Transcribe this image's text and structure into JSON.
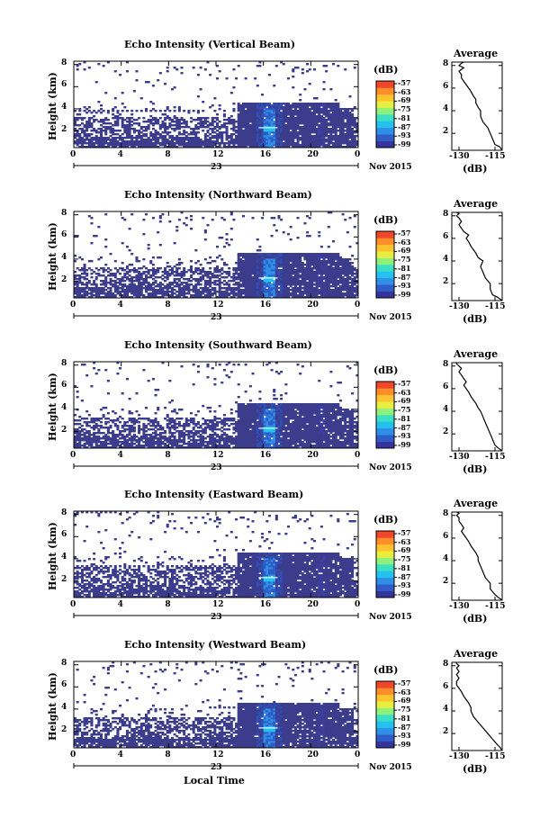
{
  "chart_data": [
    {
      "type": "heatmap",
      "title": "Echo Intensity (Vertical Beam)",
      "ylabel": "Height (km)",
      "xlabel": "",
      "x_ticks": [
        "0",
        "4",
        "8",
        "12",
        "16",
        "20",
        "0"
      ],
      "date_label": "23",
      "month_label": "Nov 2015",
      "y_ticks": [
        "2",
        "4",
        "6",
        "8"
      ],
      "ylim": [
        0.5,
        8.3
      ],
      "xlim": [
        0,
        24
      ],
      "colorbar_unit": "(dB)",
      "colorbar_ticks": [
        "-57",
        "-63",
        "-69",
        "-75",
        "-81",
        "-87",
        "-93",
        "-99"
      ],
      "mean_plot": {
        "title": "Average",
        "xlabel": "(dB)",
        "x_ticks": [
          "-130",
          "-115"
        ],
        "xlim": [
          -133,
          -112
        ],
        "y_ticks": [
          "2",
          "4",
          "6",
          "8"
        ],
        "x": [
          -112,
          -113,
          -115,
          -116,
          -117,
          -118,
          -120,
          -121,
          -121,
          -122,
          -123,
          -123,
          -124,
          -125,
          -126,
          -127,
          -128,
          -129,
          -129,
          -130,
          -128,
          -130,
          -129,
          -128
        ],
        "y": [
          0.5,
          0.8,
          1.0,
          1.5,
          2.0,
          2.5,
          3.0,
          3.5,
          4.0,
          4.3,
          4.7,
          5.0,
          5.3,
          5.7,
          6.0,
          6.3,
          6.6,
          6.9,
          7.2,
          7.5,
          7.8,
          8.0,
          8.2,
          8.3
        ]
      }
    },
    {
      "type": "heatmap",
      "title": "Echo Intensity (Northward Beam)",
      "ylabel": "Height (km)",
      "xlabel": "",
      "x_ticks": [
        "0",
        "4",
        "8",
        "12",
        "16",
        "20",
        "0"
      ],
      "date_label": "23",
      "month_label": "Nov 2015",
      "y_ticks": [
        "2",
        "4",
        "6",
        "8"
      ],
      "ylim": [
        0.5,
        8.3
      ],
      "xlim": [
        0,
        24
      ],
      "colorbar_unit": "(dB)",
      "colorbar_ticks": [
        "-57",
        "-63",
        "-69",
        "-75",
        "-81",
        "-87",
        "-93",
        "-99"
      ],
      "mean_plot": {
        "title": "Average",
        "xlabel": "(dB)",
        "x_ticks": [
          "-130",
          "-115"
        ],
        "xlim": [
          -133,
          -112
        ],
        "y_ticks": [
          "2",
          "4",
          "6",
          "8"
        ],
        "x": [
          -112,
          -114,
          -116,
          -117,
          -117,
          -119,
          -120,
          -121,
          -120,
          -122,
          -123,
          -124,
          -125,
          -126,
          -127,
          -126,
          -128,
          -129,
          -130,
          -129,
          -130,
          -131,
          -130,
          -131
        ],
        "y": [
          0.5,
          0.8,
          1.0,
          1.5,
          2.0,
          2.5,
          3.0,
          3.5,
          4.0,
          4.3,
          4.7,
          5.0,
          5.3,
          5.7,
          6.0,
          6.3,
          6.6,
          6.9,
          7.2,
          7.5,
          7.8,
          8.0,
          8.2,
          8.3
        ]
      }
    },
    {
      "type": "heatmap",
      "title": "Echo Intensity (Southward Beam)",
      "ylabel": "Height (km)",
      "xlabel": "",
      "x_ticks": [
        "0",
        "4",
        "8",
        "12",
        "16",
        "20",
        "0"
      ],
      "date_label": "23",
      "month_label": "Nov 2015",
      "y_ticks": [
        "2",
        "4",
        "6",
        "8"
      ],
      "ylim": [
        0.5,
        8.3
      ],
      "xlim": [
        0,
        24
      ],
      "colorbar_unit": "(dB)",
      "colorbar_ticks": [
        "-57",
        "-63",
        "-69",
        "-75",
        "-81",
        "-87",
        "-93",
        "-99"
      ],
      "mean_plot": {
        "title": "Average",
        "xlabel": "(dB)",
        "x_ticks": [
          "-130",
          "-115"
        ],
        "xlim": [
          -133,
          -112
        ],
        "y_ticks": [
          "2",
          "4",
          "6",
          "8"
        ],
        "x": [
          -112,
          -114,
          -115,
          -116,
          -117,
          -118,
          -119,
          -120,
          -121,
          -122,
          -123,
          -124,
          -125,
          -126,
          -127,
          -128,
          -127,
          -128,
          -129,
          -130,
          -129,
          -130,
          -131,
          -131
        ],
        "y": [
          0.5,
          0.8,
          1.0,
          1.5,
          2.0,
          2.5,
          3.0,
          3.5,
          4.0,
          4.3,
          4.7,
          5.0,
          5.3,
          5.7,
          6.0,
          6.3,
          6.6,
          6.9,
          7.2,
          7.5,
          7.8,
          8.0,
          8.2,
          8.3
        ]
      }
    },
    {
      "type": "heatmap",
      "title": "Echo Intensity (Eastward Beam)",
      "ylabel": "Height (km)",
      "xlabel": "",
      "x_ticks": [
        "0",
        "4",
        "8",
        "12",
        "16",
        "20",
        "0"
      ],
      "date_label": "23",
      "month_label": "Nov 2015",
      "y_ticks": [
        "2",
        "4",
        "6",
        "8"
      ],
      "ylim": [
        0.5,
        8.3
      ],
      "xlim": [
        0,
        24
      ],
      "colorbar_unit": "(dB)",
      "colorbar_ticks": [
        "-57",
        "-63",
        "-69",
        "-75",
        "-81",
        "-87",
        "-93",
        "-99"
      ],
      "mean_plot": {
        "title": "Average",
        "xlabel": "(dB)",
        "x_ticks": [
          "-130",
          "-115"
        ],
        "xlim": [
          -133,
          -112
        ],
        "y_ticks": [
          "2",
          "4",
          "6",
          "8"
        ],
        "x": [
          -112,
          -114,
          -115,
          -117,
          -117,
          -119,
          -120,
          -121,
          -122,
          -122,
          -123,
          -124,
          -125,
          -126,
          -127,
          -128,
          -129,
          -128,
          -129,
          -130,
          -130,
          -131,
          -130,
          -131
        ],
        "y": [
          0.5,
          0.8,
          1.0,
          1.5,
          2.0,
          2.5,
          3.0,
          3.5,
          4.0,
          4.3,
          4.7,
          5.0,
          5.3,
          5.7,
          6.0,
          6.3,
          6.6,
          6.9,
          7.2,
          7.5,
          7.8,
          8.0,
          8.2,
          8.3
        ]
      }
    },
    {
      "type": "heatmap",
      "title": "Echo Intensity (Westward Beam)",
      "ylabel": "Height (km)",
      "xlabel": "Local Time",
      "x_ticks": [
        "0",
        "4",
        "8",
        "12",
        "16",
        "20",
        "0"
      ],
      "date_label": "23",
      "month_label": "Nov 2015",
      "y_ticks": [
        "2",
        "4",
        "6",
        "8"
      ],
      "ylim": [
        0.5,
        8.3
      ],
      "xlim": [
        0,
        24
      ],
      "colorbar_unit": "(dB)",
      "colorbar_ticks": [
        "-57",
        "-63",
        "-69",
        "-75",
        "-81",
        "-87",
        "-93",
        "-99"
      ],
      "mean_plot": {
        "title": "Average",
        "xlabel": "(dB)",
        "x_ticks": [
          "-130",
          "-115"
        ],
        "xlim": [
          -133,
          -112
        ],
        "y_ticks": [
          "2",
          "4",
          "6",
          "8"
        ],
        "x": [
          -112,
          -113,
          -114,
          -116,
          -118,
          -120,
          -122,
          -124,
          -125,
          -125,
          -126,
          -127,
          -128,
          -129,
          -130,
          -131,
          -131,
          -130,
          -131,
          -130,
          -131,
          -130,
          -131,
          -131
        ],
        "y": [
          0.5,
          0.8,
          1.0,
          1.5,
          2.0,
          2.5,
          3.0,
          3.5,
          4.0,
          4.3,
          4.7,
          5.0,
          5.3,
          5.7,
          6.0,
          6.3,
          6.6,
          6.9,
          7.2,
          7.5,
          7.8,
          8.0,
          8.2,
          8.3
        ]
      }
    }
  ],
  "colors": {
    "colormap": [
      "#35349c",
      "#2f5cc7",
      "#2f8fe6",
      "#25c1ee",
      "#3be0c4",
      "#8ff07c",
      "#e8ee3f",
      "#ffc330",
      "#ff8d2a",
      "#f0462a"
    ],
    "field": "#3c3c8c",
    "axis": "#000000"
  }
}
